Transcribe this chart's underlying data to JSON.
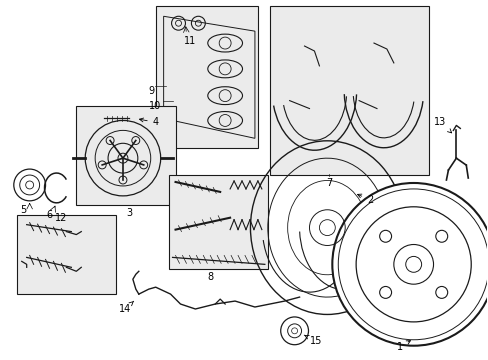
{
  "bg_color": "#ffffff",
  "lc": "#1a1a1a",
  "box_fill": "#ebebeb",
  "fig_width": 4.89,
  "fig_height": 3.6,
  "dpi": 100,
  "label_fs": 7.0
}
